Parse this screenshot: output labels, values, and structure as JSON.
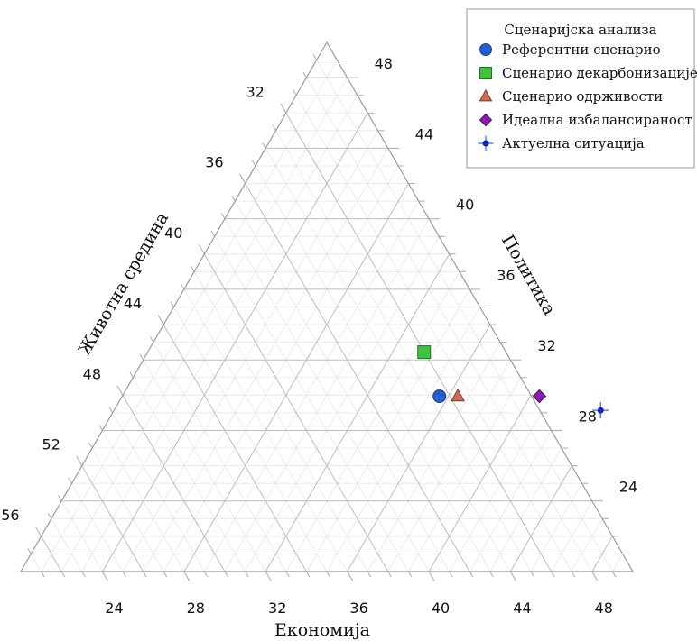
{
  "chart_data": {
    "type": "scatter",
    "subtype": "ternary",
    "axes": {
      "bottom": {
        "label": "Економија",
        "range": [
          20,
          50
        ],
        "ticks": [
          24,
          28,
          32,
          36,
          40,
          44,
          48
        ]
      },
      "right": {
        "label": "Политика",
        "range": [
          20,
          50
        ],
        "ticks": [
          24,
          28,
          32,
          36,
          40,
          44,
          48
        ]
      },
      "left": {
        "label": "Животна средина",
        "range": [
          28,
          58
        ],
        "ticks": [
          32,
          36,
          40,
          44,
          48,
          52,
          56
        ]
      }
    },
    "grid": true,
    "legend": {
      "title": "Сценаријска анализа",
      "position": "top-right"
    },
    "series": [
      {
        "name": "Референтни сценарио",
        "marker": "circle",
        "color": "#1f5fd6",
        "economy": 34.4,
        "politics": 32.1,
        "environment": 33.5
      },
      {
        "name": "Сценарио декарбонизације",
        "marker": "square",
        "color": "#3cc43c",
        "economy": 32.4,
        "politics": 34.6,
        "environment": 33.0
      },
      {
        "name": "Сценарио одрживости",
        "marker": "triangle",
        "color": "#cd6b55",
        "economy": 35.3,
        "politics": 32.1,
        "environment": 32.6
      },
      {
        "name": "Идеална избалансираност",
        "marker": "diamond",
        "color": "#8a1ea8",
        "economy": 39.3,
        "politics": 32.1,
        "environment": 28.6
      },
      {
        "name": "Актуелна ситуација",
        "marker": "cross-dot",
        "color": "#1c1cc8",
        "economy": 42.7,
        "politics": 31.3,
        "environment": 26.0
      }
    ]
  }
}
